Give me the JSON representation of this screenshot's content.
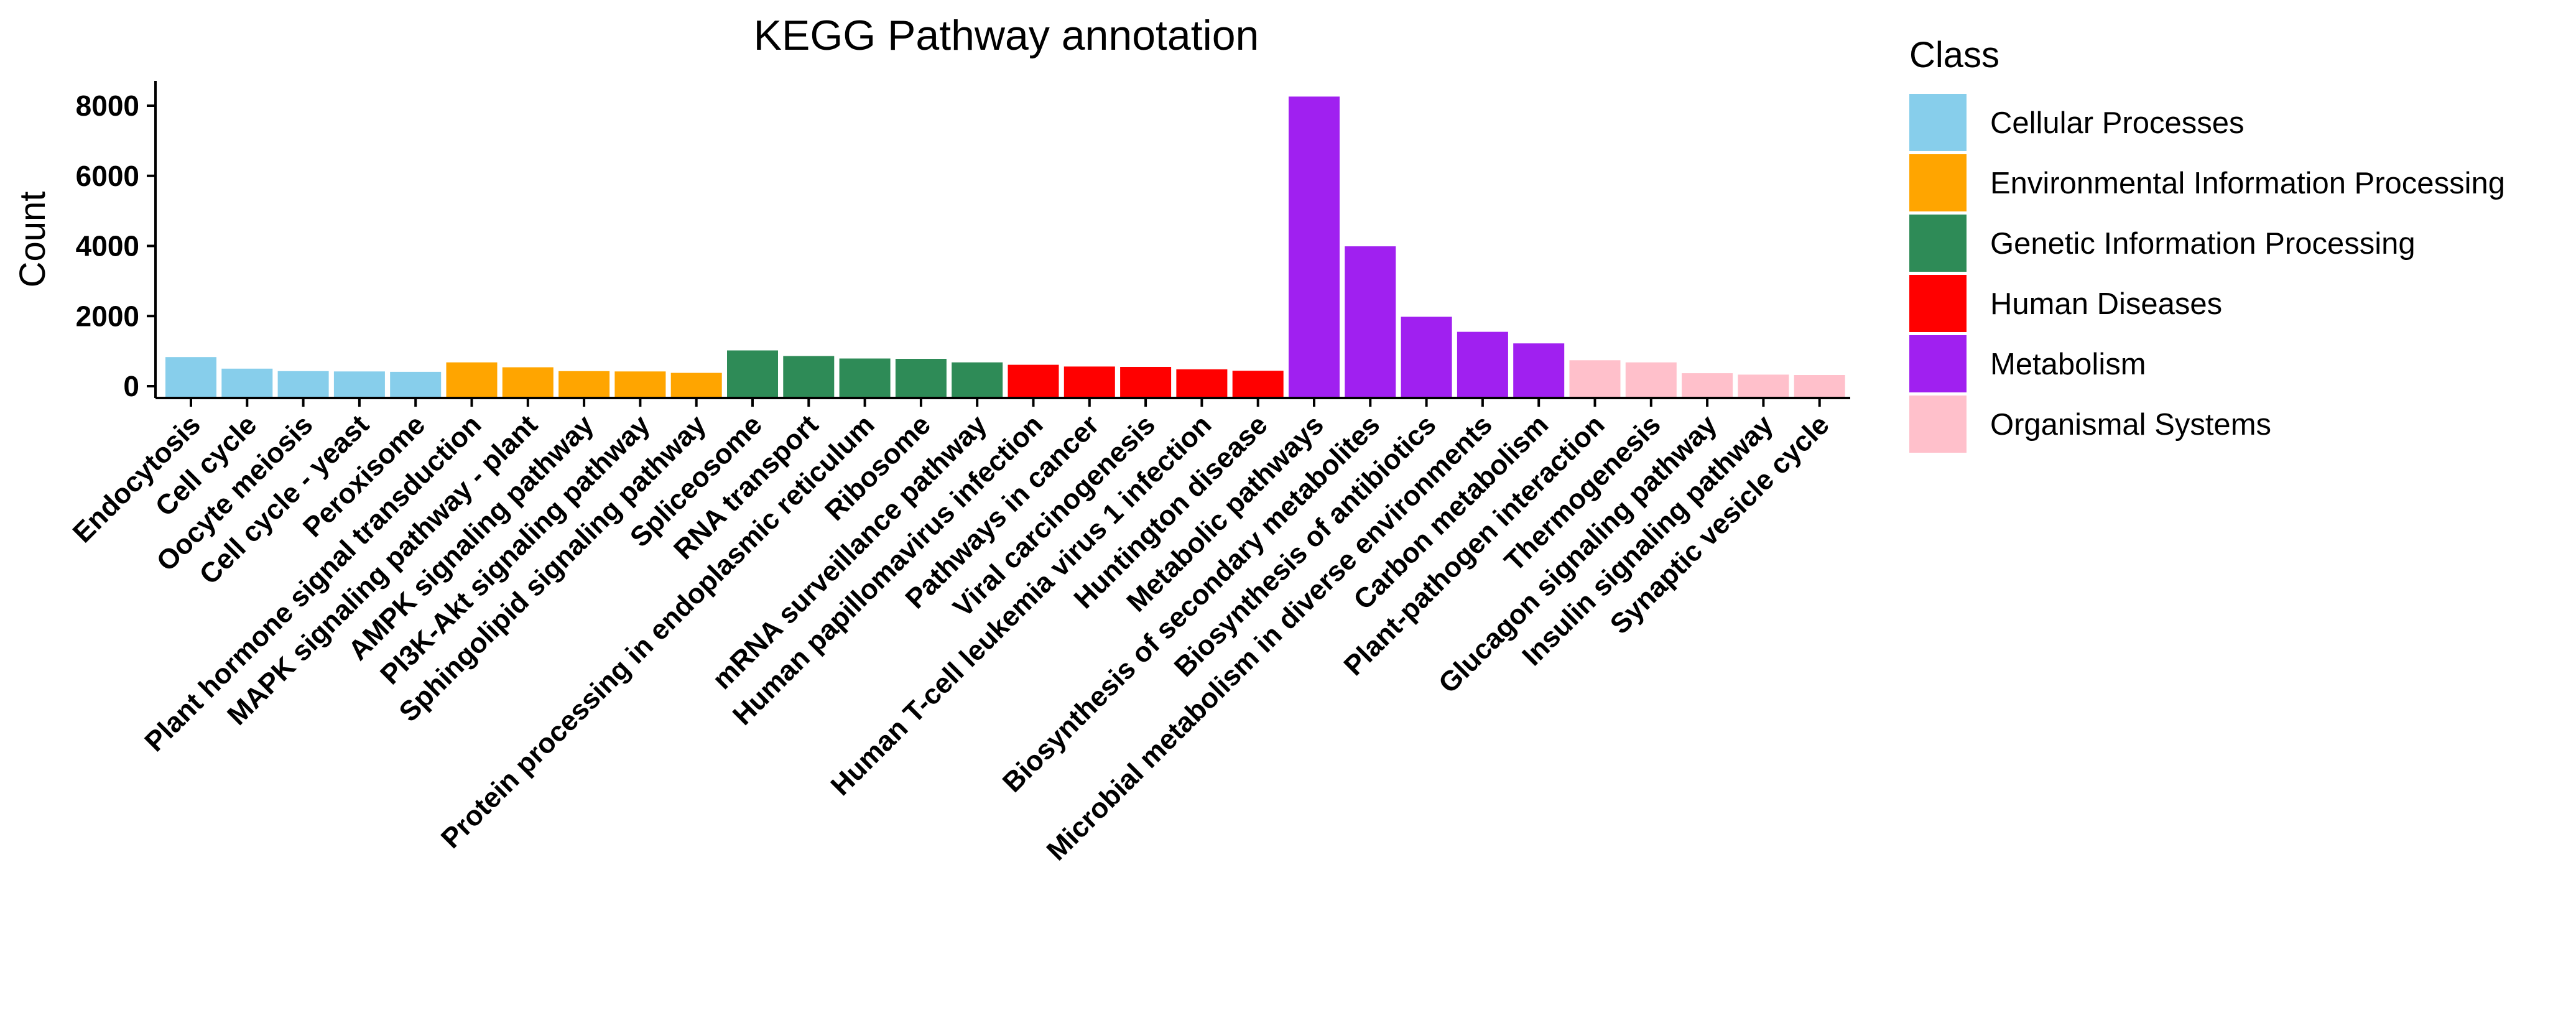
{
  "chart_data": {
    "type": "bar",
    "title": "KEGG Pathway annotation",
    "xlabel": "",
    "ylabel": "Count",
    "ylim": [
      0,
      8700
    ],
    "yticks": [
      0,
      2000,
      4000,
      6000,
      8000
    ],
    "grid": false,
    "legend": {
      "title": "Class",
      "position": "right",
      "entries": [
        {
          "name": "Cellular Processes",
          "color": "#87CEEB"
        },
        {
          "name": "Environmental Information Processing",
          "color": "#FFA500"
        },
        {
          "name": "Genetic Information Processing",
          "color": "#2E8B57"
        },
        {
          "name": "Human Diseases",
          "color": "#FF0000"
        },
        {
          "name": "Metabolism",
          "color": "#A020F0"
        },
        {
          "name": "Organismal Systems",
          "color": "#FFC0CB"
        }
      ]
    },
    "bars": [
      {
        "category": "Endocytosis",
        "value": 830,
        "class": "Cellular Processes"
      },
      {
        "category": "Cell cycle",
        "value": 500,
        "class": "Cellular Processes"
      },
      {
        "category": "Oocyte meiosis",
        "value": 430,
        "class": "Cellular Processes"
      },
      {
        "category": "Cell cycle - yeast",
        "value": 420,
        "class": "Cellular Processes"
      },
      {
        "category": "Peroxisome",
        "value": 410,
        "class": "Cellular Processes"
      },
      {
        "category": "Plant hormone signal transduction",
        "value": 680,
        "class": "Environmental Information Processing"
      },
      {
        "category": "MAPK signaling pathway - plant",
        "value": 540,
        "class": "Environmental Information Processing"
      },
      {
        "category": "AMPK signaling pathway",
        "value": 430,
        "class": "Environmental Information Processing"
      },
      {
        "category": "PI3K-Akt signaling pathway",
        "value": 420,
        "class": "Environmental Information Processing"
      },
      {
        "category": "Sphingolipid signaling pathway",
        "value": 380,
        "class": "Environmental Information Processing"
      },
      {
        "category": "Spliceosome",
        "value": 1020,
        "class": "Genetic Information Processing"
      },
      {
        "category": "RNA transport",
        "value": 860,
        "class": "Genetic Information Processing"
      },
      {
        "category": "Protein processing in endoplasmic reticulum",
        "value": 790,
        "class": "Genetic Information Processing"
      },
      {
        "category": "Ribosome",
        "value": 780,
        "class": "Genetic Information Processing"
      },
      {
        "category": "mRNA surveillance pathway",
        "value": 680,
        "class": "Genetic Information Processing"
      },
      {
        "category": "Human papillomavirus infection",
        "value": 610,
        "class": "Human Diseases"
      },
      {
        "category": "Pathways in cancer",
        "value": 560,
        "class": "Human Diseases"
      },
      {
        "category": "Viral carcinogenesis",
        "value": 550,
        "class": "Human Diseases"
      },
      {
        "category": "Human T-cell leukemia virus 1 infection",
        "value": 480,
        "class": "Human Diseases"
      },
      {
        "category": "Huntington disease",
        "value": 440,
        "class": "Human Diseases"
      },
      {
        "category": "Metabolic pathways",
        "value": 8260,
        "class": "Metabolism"
      },
      {
        "category": "Biosynthesis of secondary metabolites",
        "value": 3990,
        "class": "Metabolism"
      },
      {
        "category": "Biosynthesis of antibiotics",
        "value": 1980,
        "class": "Metabolism"
      },
      {
        "category": "Microbial metabolism in diverse environments",
        "value": 1550,
        "class": "Metabolism"
      },
      {
        "category": "Carbon metabolism",
        "value": 1220,
        "class": "Metabolism"
      },
      {
        "category": "Plant-pathogen interaction",
        "value": 740,
        "class": "Organismal Systems"
      },
      {
        "category": "Thermogenesis",
        "value": 680,
        "class": "Organismal Systems"
      },
      {
        "category": "Glucagon signaling pathway",
        "value": 370,
        "class": "Organismal Systems"
      },
      {
        "category": "Insulin signaling pathway",
        "value": 330,
        "class": "Organismal Systems"
      },
      {
        "category": "Synaptic vesicle cycle",
        "value": 320,
        "class": "Organismal Systems"
      }
    ]
  }
}
